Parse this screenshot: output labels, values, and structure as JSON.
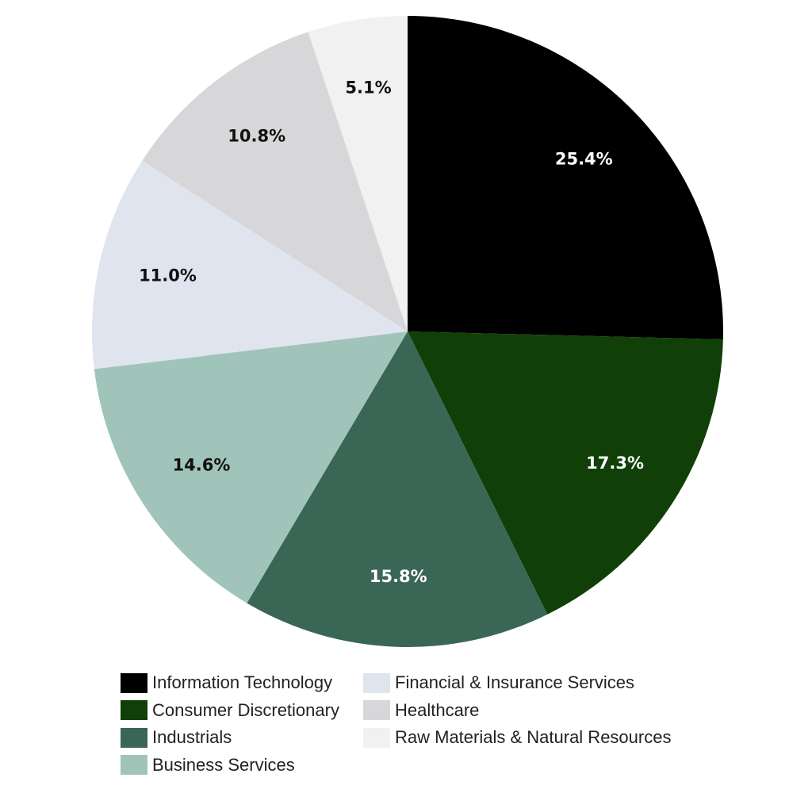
{
  "chart_data": {
    "type": "pie",
    "title": "",
    "start_angle_deg": 0,
    "direction": "clockwise",
    "legend_position": "bottom",
    "slices": [
      {
        "name": "Information Technology",
        "value": 25.4,
        "label": "25.4%",
        "color": "#000000",
        "label_color": "#ffffff"
      },
      {
        "name": "Consumer Discretionary",
        "value": 17.3,
        "label": "17.3%",
        "color": "#113f08",
        "label_color": "#ffffff"
      },
      {
        "name": "Industrials",
        "value": 15.8,
        "label": "15.8%",
        "color": "#3a6656",
        "label_color": "#ffffff"
      },
      {
        "name": "Business Services",
        "value": 14.6,
        "label": "14.6%",
        "color": "#a0c4b9",
        "label_color": "#111111"
      },
      {
        "name": "Financial & Insurance Services",
        "value": 11.0,
        "label": "11.0%",
        "color": "#dfe4ee",
        "label_color": "#111111"
      },
      {
        "name": "Healthcare",
        "value": 10.8,
        "label": "10.8%",
        "color": "#d7d7d9",
        "label_color": "#111111"
      },
      {
        "name": "Raw Materials & Natural Resources",
        "value": 5.1,
        "label": "5.1%",
        "color": "#f1f1f1",
        "label_color": "#111111"
      }
    ]
  }
}
